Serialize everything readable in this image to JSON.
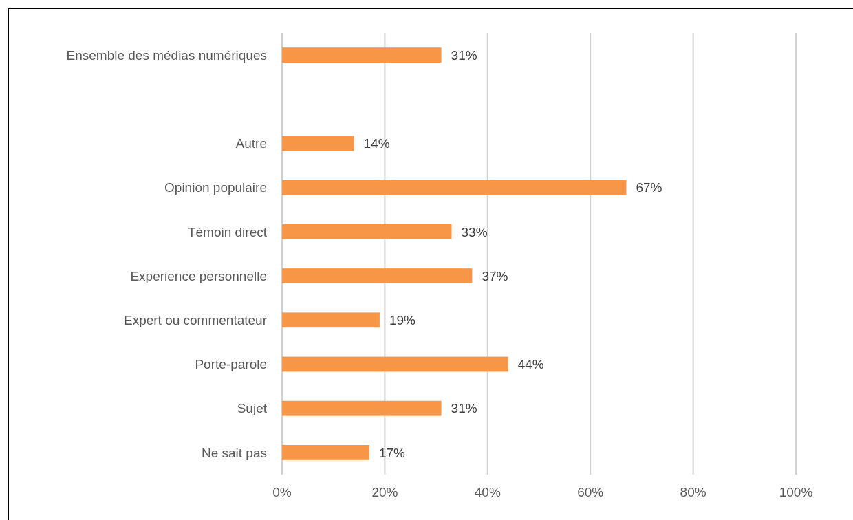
{
  "chart_data": {
    "type": "bar",
    "orientation": "horizontal",
    "categories": [
      "Ensemble des médias numériques",
      null,
      "Autre",
      "Opinion populaire",
      "Témoin direct",
      "Experience personnelle",
      "Expert ou commentateur",
      "Porte-parole",
      "Sujet",
      "Ne sait pas"
    ],
    "values": [
      31,
      null,
      14,
      67,
      33,
      37,
      19,
      44,
      31,
      17
    ],
    "color": "#f79646",
    "value_labels": [
      "31%",
      null,
      "14%",
      "67%",
      "33%",
      "37%",
      "19%",
      "44%",
      "31%",
      "17%"
    ],
    "xlim": [
      0,
      100
    ],
    "xticks": [
      {
        "value": 0,
        "label": "0%"
      },
      {
        "value": 20,
        "label": "20%"
      },
      {
        "value": 40,
        "label": "40%"
      },
      {
        "value": 60,
        "label": "60%"
      },
      {
        "value": 80,
        "label": "80%"
      },
      {
        "value": 100,
        "label": "100%"
      }
    ],
    "grid": "x"
  }
}
